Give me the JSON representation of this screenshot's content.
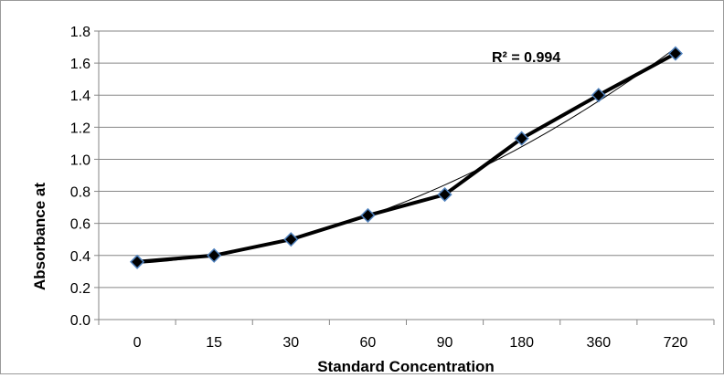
{
  "chart_data": {
    "type": "line",
    "categories": [
      "0",
      "15",
      "30",
      "60",
      "90",
      "180",
      "360",
      "720"
    ],
    "series": [
      {
        "values": [
          0.36,
          0.4,
          0.5,
          0.65,
          0.78,
          1.13,
          1.4,
          1.66
        ]
      }
    ],
    "trendline": {
      "type": "polynomial",
      "start": 0.355,
      "end": 1.655
    },
    "annotation": "R² = 0.994",
    "xlabel": "Standard Concentration",
    "ylabel": "Absorbance at",
    "ylim": [
      0,
      1.8
    ],
    "yticks": [
      "0.0",
      "0.2",
      "0.4",
      "0.6",
      "0.8",
      "1.0",
      "1.2",
      "1.4",
      "1.6",
      "1.8"
    ],
    "grid": "horizontal",
    "colors": {
      "line": "#000000",
      "marker_fill": "#000000",
      "marker_edge": "#4f81bd",
      "grid": "#868686",
      "axis": "#868686"
    }
  }
}
